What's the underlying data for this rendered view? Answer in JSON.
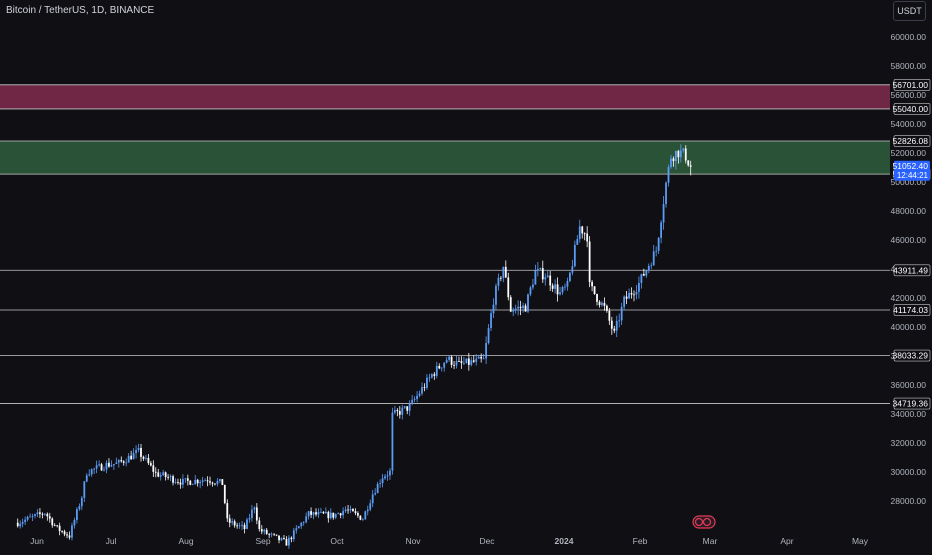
{
  "header": {
    "title": "Bitcoin / TetherUS, 1D, BINANCE",
    "currency": "USDT"
  },
  "colors": {
    "background": "#0f0f14",
    "up": "#5b9cf6",
    "down": "#ffffff",
    "grid_text": "#b2b5be",
    "resistance_zone": "#7a2a4a",
    "support_zone": "#2e5a3a",
    "last_price_bg": "#2962ff"
  },
  "chart_data": {
    "type": "candlestick",
    "title": "Bitcoin / TetherUS, 1D, BINANCE",
    "y_unit": "USDT",
    "ylim": [
      26000,
      62000
    ],
    "y_ticks": [
      60000,
      58000,
      56000,
      54000,
      52000,
      50000,
      48000,
      46000,
      44000,
      42000,
      40000,
      38000,
      36000,
      34000,
      32000,
      30000,
      28000
    ],
    "x_ticks": [
      "Jun",
      "Jul",
      "Aug",
      "Sep",
      "Oct",
      "Nov",
      "Dec",
      "2024",
      "Feb",
      "Mar",
      "Apr",
      "May"
    ],
    "grid": false,
    "zones": [
      {
        "name": "resistance",
        "from": 55040.0,
        "to": 56701.0,
        "labels": [
          "56701.00",
          "55040.00"
        ]
      },
      {
        "name": "support",
        "from": 50545.19,
        "to": 52826.08,
        "labels": [
          "52826.08",
          "50545.19"
        ]
      }
    ],
    "levels": [
      {
        "price": 43911.49,
        "label": "43911.49"
      },
      {
        "price": 41174.03,
        "label": "41174.03"
      },
      {
        "price": 38033.29,
        "label": "38033.29"
      },
      {
        "price": 34719.36,
        "label": "34719.36"
      }
    ],
    "last_price": {
      "value": 51052.4,
      "label": "51052.40",
      "countdown": "12:44:21"
    },
    "anchors": [
      [
        "2023-05-25",
        26500
      ],
      [
        "2023-06-05",
        27200
      ],
      [
        "2023-06-10",
        26100
      ],
      [
        "2023-06-15",
        25600
      ],
      [
        "2023-06-20",
        28300
      ],
      [
        "2023-06-22",
        30000
      ],
      [
        "2023-06-30",
        30500
      ],
      [
        "2023-07-05",
        30600
      ],
      [
        "2023-07-13",
        31400
      ],
      [
        "2023-07-20",
        29900
      ],
      [
        "2023-07-31",
        29300
      ],
      [
        "2023-08-10",
        29500
      ],
      [
        "2023-08-16",
        29200
      ],
      [
        "2023-08-18",
        26600
      ],
      [
        "2023-08-25",
        26100
      ],
      [
        "2023-08-29",
        27700
      ],
      [
        "2023-08-31",
        26000
      ],
      [
        "2023-09-11",
        25100
      ],
      [
        "2023-09-20",
        27100
      ],
      [
        "2023-09-30",
        27000
      ],
      [
        "2023-10-05",
        27400
      ],
      [
        "2023-10-12",
        26800
      ],
      [
        "2023-10-16",
        28500
      ],
      [
        "2023-10-20",
        29700
      ],
      [
        "2023-10-23",
        30000
      ],
      [
        "2023-10-24",
        33900
      ],
      [
        "2023-10-31",
        34500
      ],
      [
        "2023-11-09",
        36700
      ],
      [
        "2023-11-15",
        37800
      ],
      [
        "2023-11-20",
        37400
      ],
      [
        "2023-11-30",
        37700
      ],
      [
        "2023-12-04",
        41900
      ],
      [
        "2023-12-08",
        44200
      ],
      [
        "2023-12-11",
        41200
      ],
      [
        "2023-12-17",
        41400
      ],
      [
        "2023-12-21",
        43800
      ],
      [
        "2023-12-25",
        43600
      ],
      [
        "2023-12-31",
        42300
      ],
      [
        "2024-01-03",
        42800
      ],
      [
        "2024-01-08",
        46900
      ],
      [
        "2024-01-11",
        46300
      ],
      [
        "2024-01-12",
        42800
      ],
      [
        "2024-01-18",
        41300
      ],
      [
        "2024-01-22",
        39500
      ],
      [
        "2024-01-26",
        41800
      ],
      [
        "2024-02-01",
        43000
      ],
      [
        "2024-02-08",
        45300
      ],
      [
        "2024-02-12",
        49900
      ],
      [
        "2024-02-14",
        51800
      ],
      [
        "2024-02-17",
        52100
      ],
      [
        "2024-02-20",
        51800
      ],
      [
        "2024-02-22",
        51052
      ]
    ]
  }
}
